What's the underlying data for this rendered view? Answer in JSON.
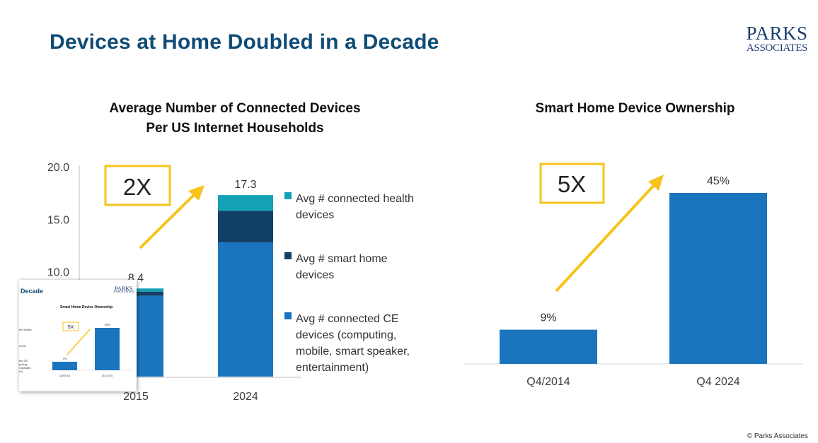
{
  "title": "Devices at Home Doubled in a Decade",
  "logo": {
    "line1": "PARKS",
    "line2": "ASSOCIATES"
  },
  "copyright": "© Parks Associates",
  "colors": {
    "title": "#0f4c75",
    "ce": "#1b74be",
    "smart_home": "#123f66",
    "health": "#14a1b6",
    "arrow": "#f7c31c"
  },
  "chart_data": [
    {
      "type": "bar",
      "stacked": true,
      "title": "Average Number of Connected Devices Per US Internet Households",
      "title_line1": "Average Number of Connected Devices",
      "title_line2": "Per US Internet Households",
      "categories": [
        "2015",
        "2024"
      ],
      "series": [
        {
          "name": "Avg # connected CE devices (computing, mobile, smart speaker, entertainment)",
          "values": [
            7.7,
            12.8
          ],
          "color": "#1b74be"
        },
        {
          "name": "Avg # smart home devices",
          "values": [
            0.4,
            3.0
          ],
          "color": "#123f66"
        },
        {
          "name": "Avg # connected health devices",
          "values": [
            0.3,
            1.5
          ],
          "color": "#14a1b6"
        }
      ],
      "totals": [
        "8.4",
        "17.3"
      ],
      "yticks": [
        "20.0",
        "15.0",
        "10.0"
      ],
      "ylim": [
        0,
        20
      ],
      "legend_position": "right",
      "legend": [
        {
          "lines": [
            "Avg # connected health",
            "devices"
          ],
          "color": "#14a1b6"
        },
        {
          "lines": [
            "Avg # smart home",
            "devices"
          ],
          "color": "#123f66"
        },
        {
          "lines": [
            "Avg # connected CE",
            "devices (computing,",
            "mobile, smart speaker,",
            "entertainment)"
          ],
          "color": "#1b74be"
        }
      ],
      "callout": "2X"
    },
    {
      "type": "bar",
      "title": "Smart Home Device Ownership",
      "categories": [
        "Q4/2014",
        "Q4 2024"
      ],
      "values": [
        9,
        45
      ],
      "labels": [
        "9%",
        "45%"
      ],
      "ylim": [
        0,
        50
      ],
      "color": "#1b74be",
      "callout": "5X"
    }
  ],
  "inset": {
    "title": "Decade",
    "chart_title": "Smart Home Device Ownership",
    "callout": "5X",
    "labels": [
      "9%",
      "45%"
    ],
    "categories": [
      "Q4/2014",
      "Q4 2024"
    ],
    "legend_fragments": [
      "ted health",
      "home",
      "ted CE",
      "puting,",
      "t speaker,",
      "nt)"
    ]
  }
}
